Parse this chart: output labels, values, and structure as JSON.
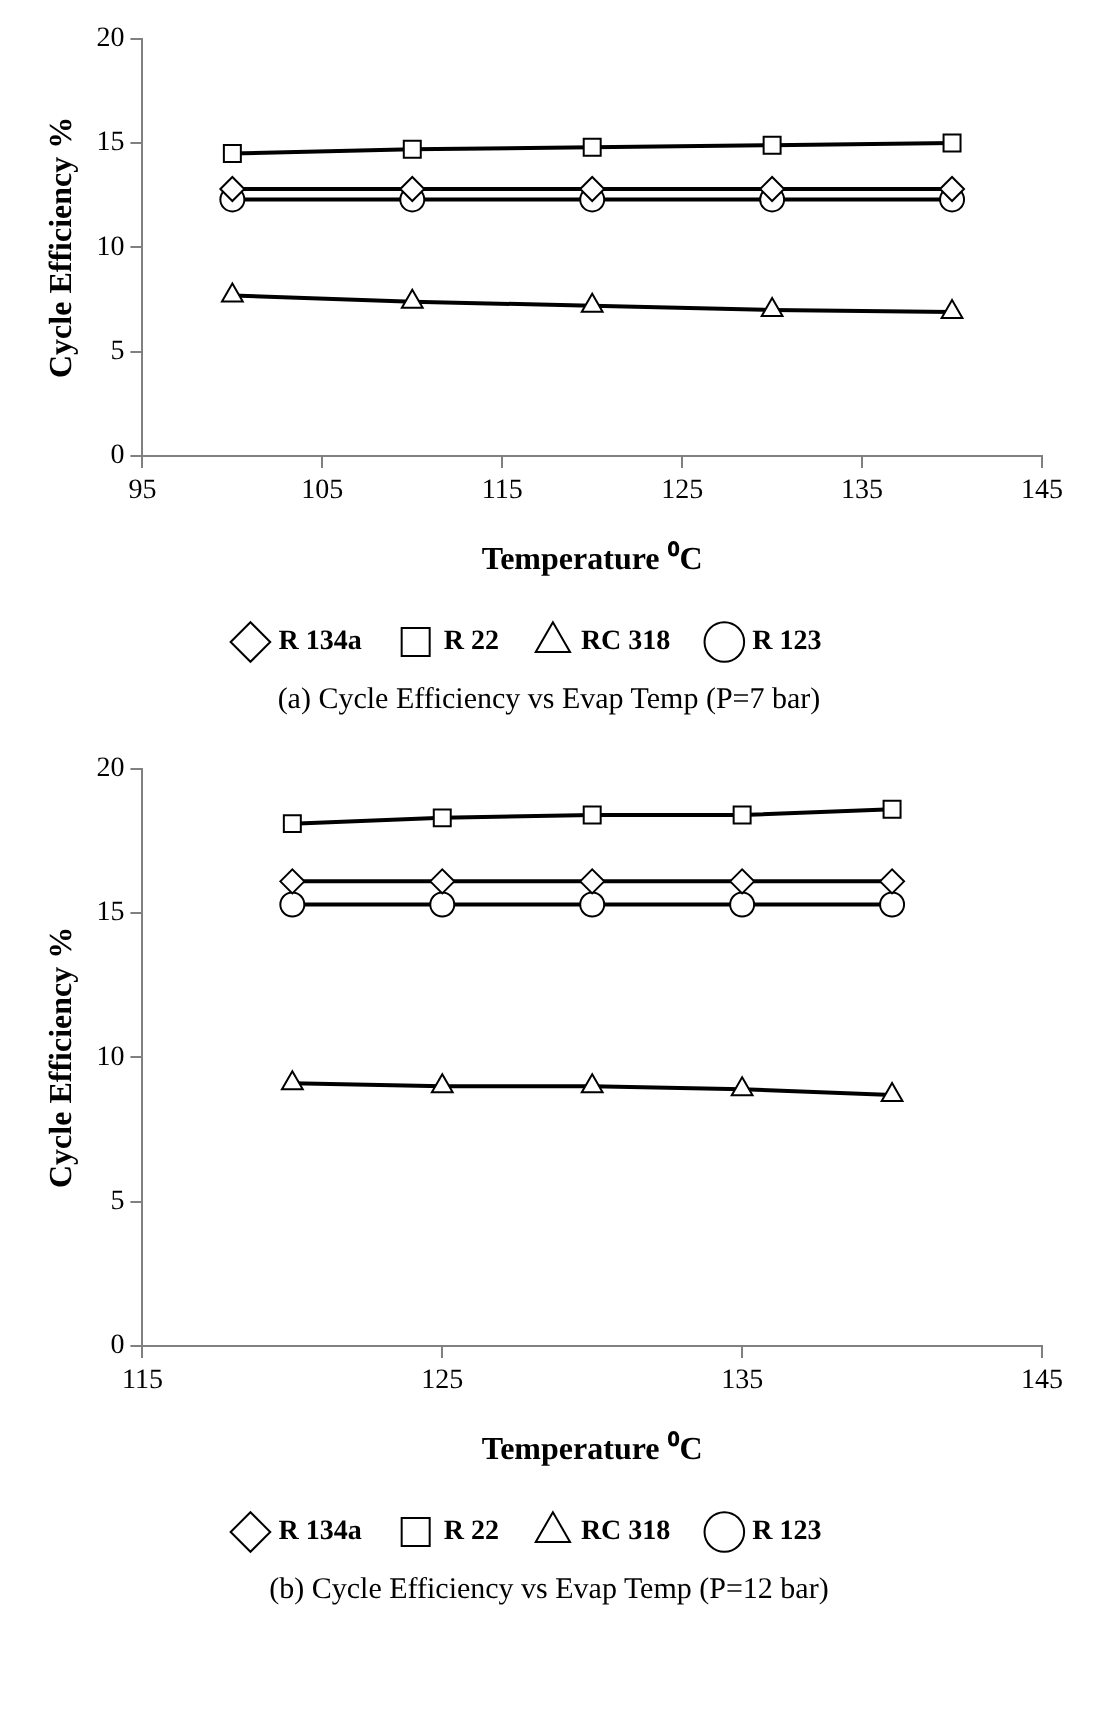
{
  "chart_data": [
    {
      "type": "line",
      "xlabel": "Temperature ⁰C",
      "ylabel": "Cycle Efficiency %",
      "x": [
        100,
        110,
        120,
        130,
        140
      ],
      "xlim": [
        95,
        145
      ],
      "xticks": [
        95,
        105,
        115,
        125,
        135,
        145
      ],
      "ylim": [
        0,
        20
      ],
      "yticks": [
        0,
        5,
        10,
        15,
        20
      ],
      "legend": "bottom",
      "grid": false,
      "annotations": [
        "(a) Cycle Efficiency vs Evap Temp (P=7 bar)"
      ],
      "series": [
        {
          "name": "R 134a",
          "color": "#000000",
          "marker": "diamond",
          "values": [
            12.8,
            12.8,
            12.8,
            12.8,
            12.8
          ]
        },
        {
          "name": "R 22",
          "color": "#000000",
          "marker": "square",
          "values": [
            14.5,
            14.7,
            14.8,
            14.9,
            15.0
          ]
        },
        {
          "name": "RC 318",
          "color": "#000000",
          "marker": "triangle",
          "values": [
            7.7,
            7.4,
            7.2,
            7.0,
            6.9
          ]
        },
        {
          "name": "R 123",
          "color": "#000000",
          "marker": "circle",
          "values": [
            12.3,
            12.3,
            12.3,
            12.3,
            12.3
          ]
        }
      ]
    },
    {
      "type": "line",
      "xlabel": "Temperature ⁰C",
      "ylabel": "Cycle Efficiency %",
      "x": [
        120,
        125,
        130,
        135,
        140
      ],
      "xlim": [
        115,
        145
      ],
      "xticks": [
        115,
        125,
        135,
        145
      ],
      "ylim": [
        0,
        20
      ],
      "yticks": [
        0,
        5,
        10,
        15,
        20
      ],
      "legend": "bottom",
      "grid": false,
      "annotations": [
        "(b) Cycle Efficiency vs Evap Temp (P=12 bar)"
      ],
      "series": [
        {
          "name": "R 134a",
          "color": "#000000",
          "marker": "diamond",
          "values": [
            16.1,
            16.1,
            16.1,
            16.1,
            16.1
          ]
        },
        {
          "name": "R 22",
          "color": "#000000",
          "marker": "square",
          "values": [
            18.1,
            18.3,
            18.4,
            18.4,
            18.6
          ]
        },
        {
          "name": "RC 318",
          "color": "#000000",
          "marker": "triangle",
          "values": [
            9.1,
            9.0,
            9.0,
            8.9,
            8.7
          ]
        },
        {
          "name": "R 123",
          "color": "#000000",
          "marker": "circle",
          "values": [
            15.3,
            15.3,
            15.3,
            15.3,
            15.3
          ]
        }
      ]
    }
  ]
}
